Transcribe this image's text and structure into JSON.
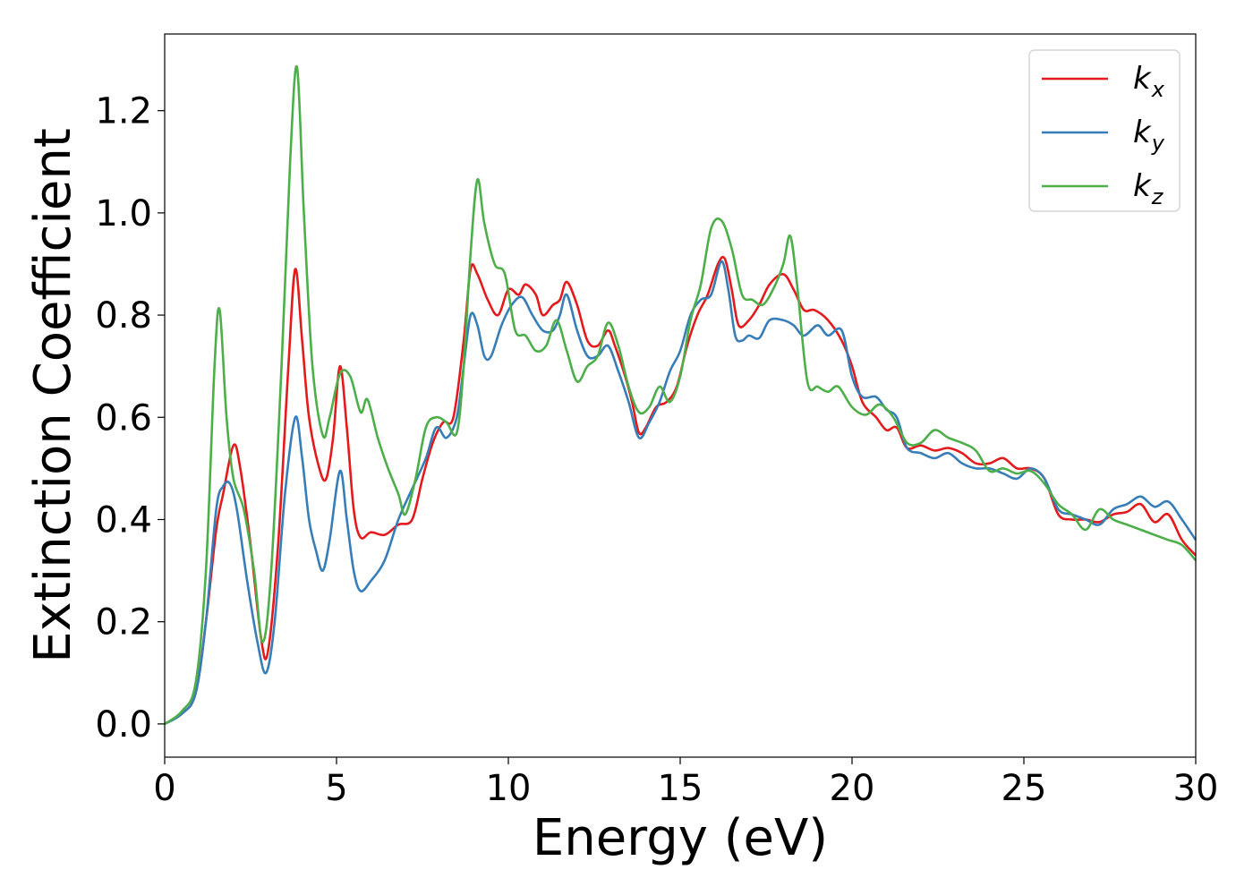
{
  "chart_data": {
    "type": "line",
    "xlabel": "Energy (eV)",
    "ylabel": "Extinction Coefficient",
    "xlim": [
      0,
      30
    ],
    "ylim": [
      -0.065,
      1.35
    ],
    "xticks": [
      0,
      5,
      10,
      15,
      20,
      25,
      30
    ],
    "xtick_labels": [
      "0",
      "5",
      "10",
      "15",
      "20",
      "25",
      "30"
    ],
    "yticks": [
      0.0,
      0.2,
      0.4,
      0.6,
      0.8,
      1.0,
      1.2
    ],
    "ytick_labels": [
      "0.0",
      "0.2",
      "0.4",
      "0.6",
      "0.8",
      "1.0",
      "1.2"
    ],
    "grid": false,
    "legend_position": "top-right",
    "series": [
      {
        "name": "k",
        "subscript": "x",
        "color": "#e41a1c",
        "points": [
          [
            0,
            0
          ],
          [
            0.5,
            0.02
          ],
          [
            0.9,
            0.06
          ],
          [
            1.2,
            0.2
          ],
          [
            1.5,
            0.38
          ],
          [
            1.7,
            0.45
          ],
          [
            2.0,
            0.545
          ],
          [
            2.2,
            0.5
          ],
          [
            2.5,
            0.35
          ],
          [
            2.8,
            0.17
          ],
          [
            3.0,
            0.14
          ],
          [
            3.3,
            0.35
          ],
          [
            3.6,
            0.7
          ],
          [
            3.8,
            0.89
          ],
          [
            4.0,
            0.75
          ],
          [
            4.2,
            0.6
          ],
          [
            4.5,
            0.5
          ],
          [
            4.7,
            0.48
          ],
          [
            4.9,
            0.56
          ],
          [
            5.1,
            0.7
          ],
          [
            5.3,
            0.58
          ],
          [
            5.5,
            0.42
          ],
          [
            5.7,
            0.365
          ],
          [
            6.0,
            0.375
          ],
          [
            6.4,
            0.37
          ],
          [
            6.8,
            0.39
          ],
          [
            7.2,
            0.4
          ],
          [
            7.5,
            0.48
          ],
          [
            7.8,
            0.55
          ],
          [
            8.1,
            0.59
          ],
          [
            8.4,
            0.6
          ],
          [
            8.7,
            0.75
          ],
          [
            8.9,
            0.89
          ],
          [
            9.1,
            0.88
          ],
          [
            9.4,
            0.83
          ],
          [
            9.7,
            0.8
          ],
          [
            10.0,
            0.85
          ],
          [
            10.3,
            0.84
          ],
          [
            10.5,
            0.86
          ],
          [
            10.8,
            0.84
          ],
          [
            11.0,
            0.8
          ],
          [
            11.3,
            0.82
          ],
          [
            11.5,
            0.83
          ],
          [
            11.7,
            0.865
          ],
          [
            12.0,
            0.82
          ],
          [
            12.3,
            0.75
          ],
          [
            12.6,
            0.74
          ],
          [
            12.9,
            0.77
          ],
          [
            13.1,
            0.74
          ],
          [
            13.4,
            0.68
          ],
          [
            13.6,
            0.63
          ],
          [
            13.8,
            0.57
          ],
          [
            14.0,
            0.58
          ],
          [
            14.3,
            0.62
          ],
          [
            14.6,
            0.63
          ],
          [
            14.9,
            0.66
          ],
          [
            15.2,
            0.74
          ],
          [
            15.5,
            0.8
          ],
          [
            15.8,
            0.84
          ],
          [
            16.1,
            0.9
          ],
          [
            16.3,
            0.91
          ],
          [
            16.5,
            0.85
          ],
          [
            16.7,
            0.78
          ],
          [
            17.0,
            0.79
          ],
          [
            17.3,
            0.82
          ],
          [
            17.6,
            0.86
          ],
          [
            18.0,
            0.88
          ],
          [
            18.3,
            0.85
          ],
          [
            18.6,
            0.81
          ],
          [
            18.9,
            0.81
          ],
          [
            19.3,
            0.79
          ],
          [
            19.7,
            0.75
          ],
          [
            20.0,
            0.7
          ],
          [
            20.3,
            0.63
          ],
          [
            20.7,
            0.6
          ],
          [
            21.0,
            0.575
          ],
          [
            21.3,
            0.58
          ],
          [
            21.6,
            0.54
          ],
          [
            22.0,
            0.545
          ],
          [
            22.4,
            0.535
          ],
          [
            22.8,
            0.54
          ],
          [
            23.2,
            0.53
          ],
          [
            23.6,
            0.51
          ],
          [
            24.0,
            0.51
          ],
          [
            24.4,
            0.52
          ],
          [
            24.8,
            0.5
          ],
          [
            25.2,
            0.5
          ],
          [
            25.6,
            0.48
          ],
          [
            26.0,
            0.41
          ],
          [
            26.4,
            0.4
          ],
          [
            26.8,
            0.4
          ],
          [
            27.2,
            0.395
          ],
          [
            27.6,
            0.41
          ],
          [
            28.0,
            0.415
          ],
          [
            28.4,
            0.43
          ],
          [
            28.8,
            0.395
          ],
          [
            29.2,
            0.41
          ],
          [
            29.6,
            0.36
          ],
          [
            30.0,
            0.33
          ]
        ]
      },
      {
        "name": "k",
        "subscript": "y",
        "color": "#377eb8",
        "points": [
          [
            0,
            0
          ],
          [
            0.5,
            0.02
          ],
          [
            0.9,
            0.06
          ],
          [
            1.2,
            0.2
          ],
          [
            1.5,
            0.42
          ],
          [
            1.7,
            0.465
          ],
          [
            1.9,
            0.47
          ],
          [
            2.1,
            0.42
          ],
          [
            2.4,
            0.28
          ],
          [
            2.7,
            0.16
          ],
          [
            2.95,
            0.1
          ],
          [
            3.2,
            0.2
          ],
          [
            3.5,
            0.45
          ],
          [
            3.8,
            0.6
          ],
          [
            4.0,
            0.52
          ],
          [
            4.2,
            0.4
          ],
          [
            4.4,
            0.34
          ],
          [
            4.6,
            0.3
          ],
          [
            4.8,
            0.36
          ],
          [
            5.1,
            0.495
          ],
          [
            5.3,
            0.4
          ],
          [
            5.5,
            0.3
          ],
          [
            5.7,
            0.26
          ],
          [
            6.0,
            0.28
          ],
          [
            6.4,
            0.32
          ],
          [
            6.8,
            0.4
          ],
          [
            7.2,
            0.46
          ],
          [
            7.6,
            0.52
          ],
          [
            7.9,
            0.58
          ],
          [
            8.2,
            0.56
          ],
          [
            8.5,
            0.6
          ],
          [
            8.7,
            0.7
          ],
          [
            8.9,
            0.8
          ],
          [
            9.1,
            0.78
          ],
          [
            9.3,
            0.72
          ],
          [
            9.5,
            0.72
          ],
          [
            9.8,
            0.78
          ],
          [
            10.1,
            0.82
          ],
          [
            10.4,
            0.835
          ],
          [
            10.7,
            0.8
          ],
          [
            11.0,
            0.77
          ],
          [
            11.3,
            0.77
          ],
          [
            11.5,
            0.8
          ],
          [
            11.7,
            0.84
          ],
          [
            12.0,
            0.77
          ],
          [
            12.3,
            0.72
          ],
          [
            12.6,
            0.72
          ],
          [
            12.9,
            0.74
          ],
          [
            13.2,
            0.69
          ],
          [
            13.5,
            0.63
          ],
          [
            13.8,
            0.56
          ],
          [
            14.1,
            0.59
          ],
          [
            14.4,
            0.63
          ],
          [
            14.7,
            0.69
          ],
          [
            15.0,
            0.73
          ],
          [
            15.3,
            0.8
          ],
          [
            15.6,
            0.83
          ],
          [
            15.9,
            0.84
          ],
          [
            16.2,
            0.905
          ],
          [
            16.4,
            0.85
          ],
          [
            16.6,
            0.76
          ],
          [
            16.8,
            0.75
          ],
          [
            17.0,
            0.76
          ],
          [
            17.3,
            0.755
          ],
          [
            17.6,
            0.79
          ],
          [
            18.0,
            0.79
          ],
          [
            18.3,
            0.78
          ],
          [
            18.6,
            0.76
          ],
          [
            19.0,
            0.78
          ],
          [
            19.3,
            0.76
          ],
          [
            19.7,
            0.77
          ],
          [
            20.0,
            0.68
          ],
          [
            20.3,
            0.64
          ],
          [
            20.7,
            0.64
          ],
          [
            21.0,
            0.615
          ],
          [
            21.3,
            0.6
          ],
          [
            21.6,
            0.54
          ],
          [
            22.0,
            0.53
          ],
          [
            22.4,
            0.52
          ],
          [
            22.8,
            0.53
          ],
          [
            23.2,
            0.51
          ],
          [
            23.6,
            0.5
          ],
          [
            24.0,
            0.5
          ],
          [
            24.4,
            0.49
          ],
          [
            24.8,
            0.48
          ],
          [
            25.2,
            0.5
          ],
          [
            25.6,
            0.48
          ],
          [
            26.0,
            0.42
          ],
          [
            26.4,
            0.41
          ],
          [
            26.8,
            0.4
          ],
          [
            27.2,
            0.39
          ],
          [
            27.6,
            0.42
          ],
          [
            28.0,
            0.43
          ],
          [
            28.4,
            0.445
          ],
          [
            28.8,
            0.425
          ],
          [
            29.2,
            0.435
          ],
          [
            29.6,
            0.4
          ],
          [
            30.0,
            0.36
          ]
        ]
      },
      {
        "name": "k",
        "subscript": "z",
        "color": "#4daf4a",
        "points": [
          [
            0,
            0
          ],
          [
            0.5,
            0.025
          ],
          [
            0.9,
            0.08
          ],
          [
            1.2,
            0.3
          ],
          [
            1.45,
            0.7
          ],
          [
            1.6,
            0.81
          ],
          [
            1.8,
            0.6
          ],
          [
            2.0,
            0.48
          ],
          [
            2.3,
            0.42
          ],
          [
            2.6,
            0.3
          ],
          [
            2.85,
            0.16
          ],
          [
            3.1,
            0.3
          ],
          [
            3.4,
            0.7
          ],
          [
            3.65,
            1.1
          ],
          [
            3.85,
            1.285
          ],
          [
            4.05,
            1.0
          ],
          [
            4.3,
            0.7
          ],
          [
            4.6,
            0.565
          ],
          [
            4.8,
            0.6
          ],
          [
            5.1,
            0.685
          ],
          [
            5.4,
            0.68
          ],
          [
            5.7,
            0.61
          ],
          [
            5.9,
            0.635
          ],
          [
            6.2,
            0.56
          ],
          [
            6.5,
            0.5
          ],
          [
            6.8,
            0.45
          ],
          [
            7.0,
            0.41
          ],
          [
            7.3,
            0.48
          ],
          [
            7.6,
            0.58
          ],
          [
            7.9,
            0.6
          ],
          [
            8.2,
            0.59
          ],
          [
            8.5,
            0.57
          ],
          [
            8.7,
            0.7
          ],
          [
            8.9,
            0.92
          ],
          [
            9.1,
            1.065
          ],
          [
            9.3,
            0.98
          ],
          [
            9.6,
            0.9
          ],
          [
            9.9,
            0.88
          ],
          [
            10.2,
            0.77
          ],
          [
            10.5,
            0.76
          ],
          [
            10.8,
            0.73
          ],
          [
            11.1,
            0.74
          ],
          [
            11.4,
            0.79
          ],
          [
            11.7,
            0.73
          ],
          [
            12.0,
            0.67
          ],
          [
            12.3,
            0.7
          ],
          [
            12.6,
            0.72
          ],
          [
            12.9,
            0.785
          ],
          [
            13.2,
            0.74
          ],
          [
            13.5,
            0.66
          ],
          [
            13.8,
            0.61
          ],
          [
            14.1,
            0.62
          ],
          [
            14.4,
            0.66
          ],
          [
            14.7,
            0.63
          ],
          [
            15.0,
            0.68
          ],
          [
            15.3,
            0.79
          ],
          [
            15.6,
            0.86
          ],
          [
            15.9,
            0.97
          ],
          [
            16.2,
            0.985
          ],
          [
            16.5,
            0.93
          ],
          [
            16.8,
            0.84
          ],
          [
            17.1,
            0.83
          ],
          [
            17.4,
            0.82
          ],
          [
            17.7,
            0.85
          ],
          [
            18.0,
            0.9
          ],
          [
            18.2,
            0.955
          ],
          [
            18.4,
            0.86
          ],
          [
            18.7,
            0.67
          ],
          [
            19.0,
            0.66
          ],
          [
            19.3,
            0.65
          ],
          [
            19.6,
            0.66
          ],
          [
            20.0,
            0.62
          ],
          [
            20.4,
            0.605
          ],
          [
            20.8,
            0.625
          ],
          [
            21.2,
            0.6
          ],
          [
            21.6,
            0.55
          ],
          [
            22.0,
            0.55
          ],
          [
            22.4,
            0.575
          ],
          [
            22.8,
            0.56
          ],
          [
            23.2,
            0.55
          ],
          [
            23.6,
            0.535
          ],
          [
            24.0,
            0.495
          ],
          [
            24.4,
            0.5
          ],
          [
            24.8,
            0.49
          ],
          [
            25.2,
            0.495
          ],
          [
            25.6,
            0.47
          ],
          [
            26.0,
            0.43
          ],
          [
            26.4,
            0.41
          ],
          [
            26.8,
            0.38
          ],
          [
            27.2,
            0.42
          ],
          [
            27.6,
            0.4
          ],
          [
            28.0,
            0.39
          ],
          [
            28.4,
            0.38
          ],
          [
            28.8,
            0.37
          ],
          [
            29.2,
            0.36
          ],
          [
            29.6,
            0.35
          ],
          [
            30.0,
            0.32
          ]
        ]
      }
    ]
  }
}
